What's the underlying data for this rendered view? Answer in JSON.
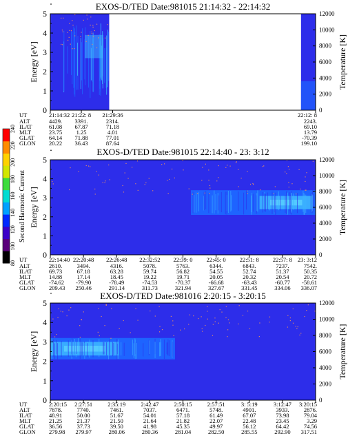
{
  "colors": {
    "background_blue": "#2d2dea",
    "band_blue": "#1e64ff",
    "band_light": "#3cb4ff",
    "band_cyan": "#5ad2ff",
    "noise_dot": "#e08a6a",
    "data_gap": "#ffffff"
  },
  "colorbar": {
    "label": "Second Harmonic Current",
    "ticks": [
      "80",
      "100",
      "120",
      "140",
      "160",
      "180",
      "200",
      "220",
      "240"
    ],
    "colors": [
      "#000000",
      "#5a007a",
      "#3c00c8",
      "#0028ff",
      "#00a0ff",
      "#00dcd2",
      "#3cdc3c",
      "#d2e600",
      "#ffd200",
      "#ff8c00",
      "#ff0000"
    ]
  },
  "chart_data": [
    {
      "type": "heatmap",
      "title": "EXOS-D/TED   Date:981015  21:14:32 - 22:14:32",
      "ylabel": "Energy [eV]",
      "y_ticks": [
        "0",
        "1",
        "2",
        "3",
        "4",
        "5"
      ],
      "ylim": [
        0,
        5
      ],
      "y2label": "Temperature [K]",
      "y2_ticks": [
        "0",
        "2000",
        "4000",
        "6000",
        "8000",
        "10000",
        "12000"
      ],
      "y2lim": [
        0,
        12000
      ],
      "data_extent": [
        0,
        0.222
      ],
      "data_extent_right": [
        0.945,
        1.0
      ],
      "band": null,
      "ephemeris": {
        "row_labels": [
          "UT",
          "ALT",
          "ILAT",
          "MLT",
          "GLAT",
          "GLON"
        ],
        "columns": [
          {
            "pos": 0.0,
            "values": [
              "21:14:32",
              "4429.",
              "61.08",
              "23.75",
              "64.14",
              "20.22"
            ]
          },
          {
            "pos": 0.117,
            "values": [
              "21:22: 8",
              "3391.",
              "67.87",
              "1.25",
              "71.88",
              "36.43"
            ]
          },
          {
            "pos": 0.235,
            "values": [
              "21:29:36",
              "2314.",
              "71.18",
              "4.01",
              "77.01",
              "87.64"
            ]
          },
          {
            "pos": 1.0,
            "values": [
              "22:12: 8",
              "2243.",
              "69.10",
              "13.79",
              "-70.39",
              "199.10"
            ]
          }
        ]
      }
    },
    {
      "type": "heatmap",
      "title": "EXOS-D/TED   Date:981015  22:14:40 - 23: 3:12",
      "ylabel": "Energy [eV]",
      "y_ticks": [
        "0",
        "1",
        "2",
        "3",
        "4",
        "5"
      ],
      "ylim": [
        0,
        5
      ],
      "y2label": "Temperature [K]",
      "y2_ticks": [
        "0",
        "2000",
        "4000",
        "6000",
        "8000",
        "10000",
        "12000"
      ],
      "y2lim": [
        0,
        12000
      ],
      "data_extent": [
        0,
        1
      ],
      "band": {
        "x_start": 0.53,
        "x_end": 1.0,
        "energy_low": 2.1,
        "energy_high": 3.4
      },
      "ephemeris": {
        "row_labels": [
          "UT",
          "ALT",
          "ILAT",
          "MLT",
          "GLAT",
          "GLON"
        ],
        "columns": [
          {
            "pos": 0.0,
            "values": [
              "22:14:40",
              "2610.",
              "69.73",
              "14.88",
              "-74.62",
              "209.43"
            ]
          },
          {
            "pos": 0.125,
            "values": [
              "22:20:48",
              "3494.",
              "67.18",
              "17.14",
              "-79.90",
              "250.46"
            ]
          },
          {
            "pos": 0.25,
            "values": [
              "22:26:48",
              "4316.",
              "63.28",
              "18.45",
              "-78.49",
              "291.14"
            ]
          },
          {
            "pos": 0.375,
            "values": [
              "22:32:52",
              "5078.",
              "59.74",
              "19.22",
              "-74.53",
              "311.73"
            ]
          },
          {
            "pos": 0.5,
            "values": [
              "22:39: 0",
              "5763.",
              "56.82",
              "19.71",
              "-70.37",
              "321.94"
            ]
          },
          {
            "pos": 0.625,
            "values": [
              "22:45: 0",
              "6344.",
              "54.55",
              "20.05",
              "-66.68",
              "327.67"
            ]
          },
          {
            "pos": 0.75,
            "values": [
              "22:51: 8",
              "6843.",
              "52.74",
              "20.32",
              "-63.43",
              "331.45"
            ]
          },
          {
            "pos": 0.875,
            "values": [
              "22:57: 8",
              "7237.",
              "51.37",
              "20.54",
              "-60.77",
              "334.06"
            ]
          },
          {
            "pos": 1.0,
            "values": [
              "23: 3:12",
              "7542.",
              "50.35",
              "20.72",
              "-58.61",
              "336.07"
            ]
          }
        ]
      }
    },
    {
      "type": "heatmap",
      "title": "EXOS-D/TED   Date:981016  2:20:15 - 3:20:15",
      "ylabel": "Energy [eV]",
      "y_ticks": [
        "0",
        "1",
        "2",
        "3",
        "4",
        "5"
      ],
      "ylim": [
        0,
        5
      ],
      "y2label": "Temperature [K]",
      "y2_ticks": [
        "0",
        "2000",
        "4000",
        "6000",
        "8000",
        "10000",
        "12000"
      ],
      "y2lim": [
        0,
        12000
      ],
      "data_extent": [
        0,
        1
      ],
      "band": {
        "x_start": 0.0,
        "x_end": 0.47,
        "energy_low": 2.1,
        "energy_high": 3.2
      },
      "ephemeris": {
        "row_labels": [
          "UT",
          "ALT",
          "ILAT",
          "MLT",
          "GLAT",
          "GLON"
        ],
        "columns": [
          {
            "pos": 0.0,
            "values": [
              "2:20:15",
              "7878.",
              "48.91",
              "21.25",
              "36.56",
              "279.98"
            ]
          },
          {
            "pos": 0.125,
            "values": [
              "2:27:51",
              "7740.",
              "50.00",
              "21.37",
              "37.73",
              "279.97"
            ]
          },
          {
            "pos": 0.25,
            "values": [
              "2:35:19",
              "7461.",
              "51.67",
              "21.50",
              "39.50",
              "280.06"
            ]
          },
          {
            "pos": 0.375,
            "values": [
              "2:42:47",
              "7037.",
              "54.01",
              "21.64",
              "41.98",
              "280.36"
            ]
          },
          {
            "pos": 0.5,
            "values": [
              "2:50:15",
              "6471.",
              "57.18",
              "21.82",
              "45.35",
              "281.04"
            ]
          },
          {
            "pos": 0.625,
            "values": [
              "2:57:51",
              "5748.",
              "61.49",
              "22.07",
              "49.97",
              "282.50"
            ]
          },
          {
            "pos": 0.75,
            "values": [
              "3: 5:19",
              "4901.",
              "67.07",
              "22.48",
              "56.12",
              "285.55"
            ]
          },
          {
            "pos": 0.875,
            "values": [
              "3:12:47",
              "3933.",
              "73.98",
              "23.45",
              "64.42",
              "292.90"
            ]
          },
          {
            "pos": 1.0,
            "values": [
              "3:20:15",
              "2876.",
              "79.04",
              "3.29",
              "74.56",
              "317.51"
            ]
          }
        ]
      }
    }
  ]
}
